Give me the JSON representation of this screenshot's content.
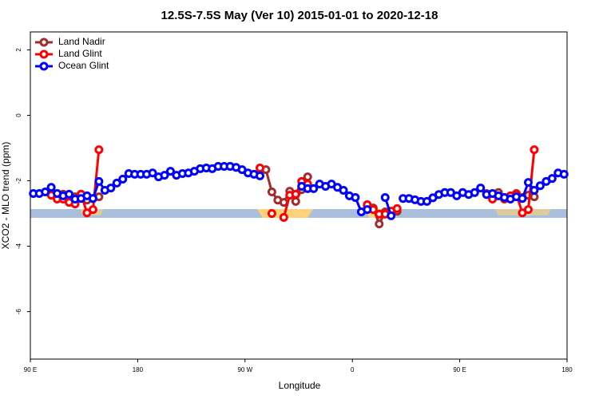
{
  "chart_data": {
    "type": "line",
    "title": "12.5S-7.5S May (Ver 10)   2015-01-01 to 2020-12-18",
    "x_label": "Longitude",
    "y_label": "XCO2 - MLO trend (ppm)",
    "x": [
      92.5,
      97.5,
      102.5,
      107.5,
      112.5,
      117.5,
      122.5,
      127.5,
      132.5,
      137.5,
      142.5,
      147.5,
      152.5,
      157.5,
      162.5,
      167.5,
      172.5,
      177.5,
      182.5,
      187.5,
      192.5,
      197.5,
      202.5,
      207.5,
      212.5,
      217.5,
      222.5,
      227.5,
      232.5,
      237.5,
      242.5,
      247.5,
      252.5,
      257.5,
      262.5,
      267.5,
      272.5,
      277.5,
      282.5,
      287.5,
      292.5,
      297.5,
      302.5,
      307.5,
      312.5,
      317.5,
      322.5,
      327.5,
      332.5,
      337.5,
      342.5,
      347.5,
      352.5,
      357.5,
      362.5,
      367.5,
      372.5,
      377.5,
      382.5,
      387.5,
      392.5,
      397.5,
      402.5,
      407.5,
      412.5,
      417.5,
      422.5,
      427.5,
      432.5,
      437.5,
      442.5,
      447.5,
      452.5,
      457.5,
      462.5,
      467.5,
      472.5,
      477.5,
      482.5,
      487.5,
      492.5,
      497.5,
      502.5,
      507.5,
      512.5,
      517.5,
      522.5,
      527.5,
      532.5,
      537.5
    ],
    "series": [
      {
        "name": "Land Nadir",
        "color": "#a52a2a",
        "values": [
          null,
          null,
          null,
          -2.41,
          -2.49,
          -2.41,
          -2.54,
          -2.49,
          -2.41,
          -2.59,
          -2.54,
          -2.49,
          null,
          null,
          null,
          null,
          null,
          null,
          null,
          null,
          null,
          null,
          null,
          null,
          null,
          null,
          null,
          null,
          null,
          null,
          null,
          null,
          null,
          null,
          null,
          null,
          null,
          null,
          null,
          -1.66,
          -2.34,
          -2.59,
          -2.66,
          -2.32,
          -2.63,
          -2.27,
          -1.88,
          null,
          null,
          null,
          null,
          null,
          null,
          null,
          null,
          null,
          -2.76,
          -2.83,
          -3.32,
          -2.95,
          -2.98,
          -2.93,
          null,
          null,
          null,
          null,
          null,
          null,
          null,
          null,
          null,
          null,
          null,
          null,
          null,
          null,
          -2.39,
          -2.51,
          -2.36,
          -2.51,
          -2.54,
          -2.39,
          -2.51,
          -2.44,
          -2.49,
          null,
          null,
          null,
          null,
          null
        ]
      },
      {
        "name": "Land Glint",
        "color": "#ff0000",
        "values": [
          null,
          null,
          null,
          -2.44,
          -2.56,
          -2.56,
          -2.66,
          -2.71,
          -2.41,
          -2.98,
          -2.88,
          -1.05,
          null,
          null,
          null,
          null,
          null,
          null,
          null,
          null,
          null,
          null,
          null,
          null,
          null,
          null,
          null,
          null,
          null,
          null,
          null,
          null,
          null,
          null,
          null,
          null,
          null,
          null,
          -1.61,
          null,
          -3.0,
          null,
          -3.12,
          -2.44,
          -2.41,
          -2.02,
          -2.1,
          null,
          null,
          null,
          null,
          null,
          null,
          null,
          null,
          null,
          -2.73,
          -2.88,
          -3.02,
          -3.02,
          -2.93,
          -2.85,
          null,
          null,
          null,
          null,
          null,
          null,
          null,
          null,
          null,
          null,
          null,
          null,
          null,
          null,
          null,
          -2.56,
          -2.46,
          -2.56,
          -2.46,
          -2.41,
          -2.98,
          -2.88,
          -1.05,
          null,
          null,
          null,
          null,
          null
        ]
      },
      {
        "name": "Ocean Glint",
        "color": "#0000ff",
        "values": [
          -2.39,
          -2.39,
          -2.34,
          -2.2,
          -2.39,
          -2.46,
          -2.41,
          -2.56,
          -2.54,
          -2.46,
          -2.54,
          -2.02,
          -2.29,
          -2.22,
          -2.07,
          -1.95,
          -1.78,
          -1.8,
          -1.8,
          -1.8,
          -1.76,
          -1.88,
          -1.83,
          -1.71,
          -1.83,
          -1.78,
          -1.76,
          -1.71,
          -1.63,
          -1.61,
          -1.63,
          -1.56,
          -1.56,
          -1.56,
          -1.59,
          -1.66,
          -1.76,
          -1.8,
          -1.85,
          null,
          null,
          null,
          null,
          null,
          null,
          -2.17,
          -2.24,
          -2.24,
          -2.1,
          -2.17,
          -2.1,
          -2.2,
          -2.29,
          -2.46,
          -2.51,
          -2.95,
          -2.88,
          null,
          null,
          -2.51,
          -3.07,
          null,
          -2.54,
          -2.54,
          -2.58,
          -2.63,
          -2.63,
          -2.52,
          -2.42,
          -2.36,
          -2.36,
          -2.46,
          -2.36,
          -2.42,
          -2.36,
          -2.22,
          -2.42,
          -2.39,
          -2.46,
          -2.51,
          -2.56,
          -2.49,
          -2.54,
          -2.05,
          -2.29,
          -2.15,
          -2.02,
          -1.93,
          -1.76,
          -1.8
        ]
      }
    ],
    "xlim": [
      90,
      540
    ],
    "xticks": [
      {
        "value": 90,
        "label": "90 E"
      },
      180,
      {
        "value": 270,
        "label": "90 W"
      },
      {
        "value": 360,
        "label": "0"
      },
      {
        "value": 450,
        "label": "90 E"
      },
      {
        "value": 540,
        "label": "180"
      }
    ],
    "ylim": [
      -7.45,
      2.55
    ],
    "yticks": [
      2,
      0,
      -2,
      -4,
      -6
    ],
    "legend": "top-left"
  }
}
